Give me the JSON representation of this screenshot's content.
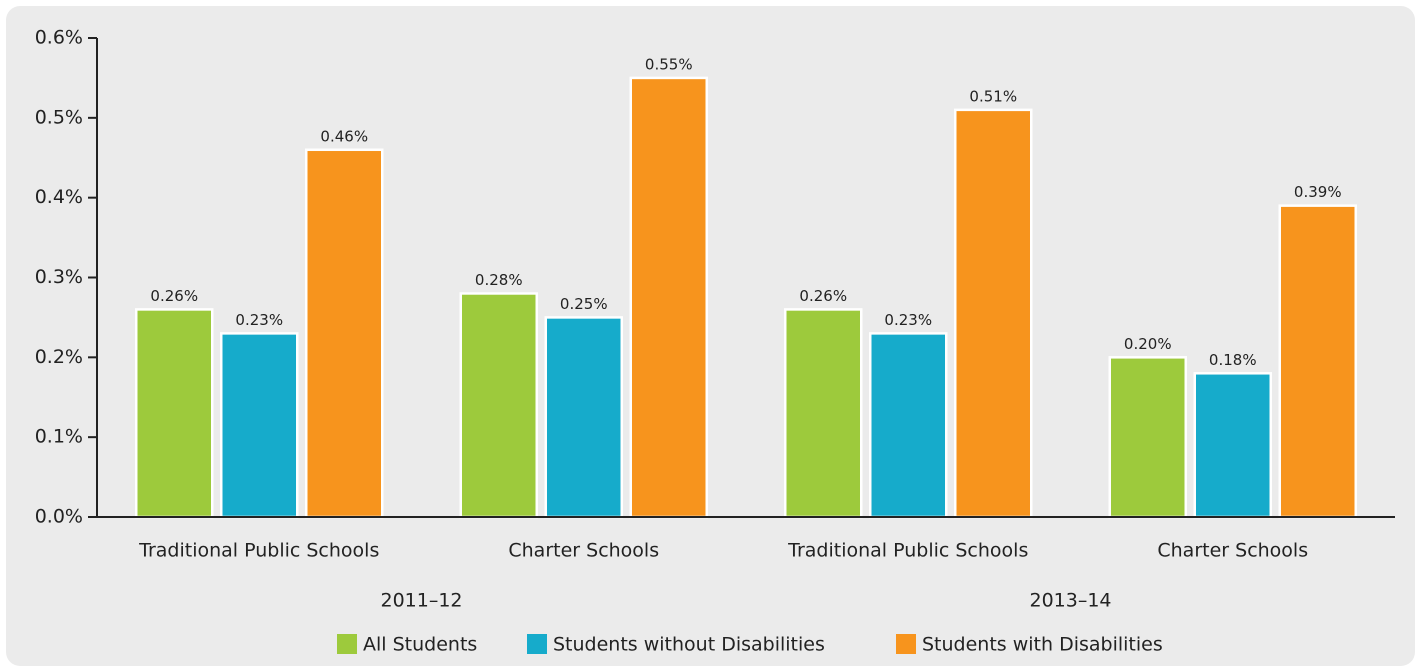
{
  "chart_data": {
    "type": "bar",
    "categories": [
      "Traditional Public Schools",
      "Charter Schools",
      "Traditional Public Schools",
      "Charter Schools"
    ],
    "x_groups": [
      "2011–12",
      "2013–14"
    ],
    "series": [
      {
        "name": "All Students",
        "color": "#9dca3c",
        "values": [
          0.26,
          0.28,
          0.26,
          0.2
        ],
        "value_labels": [
          "0.26%",
          "0.28%",
          "0.26%",
          "0.20%"
        ]
      },
      {
        "name": "Students without Disabilities",
        "color": "#16abcb",
        "values": [
          0.23,
          0.25,
          0.23,
          0.18
        ],
        "value_labels": [
          "0.23%",
          "0.25%",
          "0.23%",
          "0.18%"
        ]
      },
      {
        "name": "Students with Disabilities",
        "color": "#f7941d",
        "values": [
          0.46,
          0.55,
          0.51,
          0.39
        ],
        "value_labels": [
          "0.46%",
          "0.55%",
          "0.51%",
          "0.39%"
        ]
      }
    ],
    "ylim": [
      0,
      0.6
    ],
    "yticks": [
      {
        "value": 0,
        "label": "0.0%"
      },
      {
        "value": 0.1,
        "label": "0.1%"
      },
      {
        "value": 0.2,
        "label": "0.2%"
      },
      {
        "value": 0.3,
        "label": "0.3%"
      },
      {
        "value": 0.4,
        "label": "0.4%"
      },
      {
        "value": 0.5,
        "label": "0.5%"
      },
      {
        "value": 0.6,
        "label": "0.6%"
      }
    ],
    "legend": "bottom"
  }
}
